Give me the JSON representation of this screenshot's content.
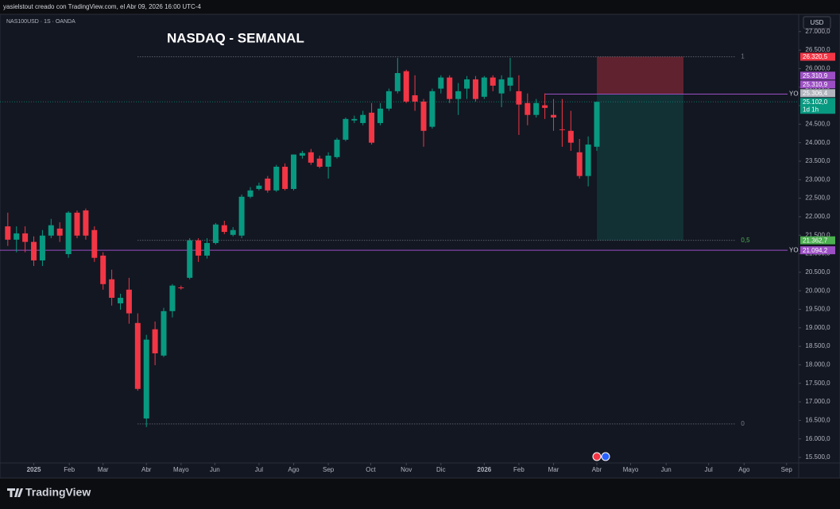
{
  "header": {
    "caption": "yasielstout creado con TradingView.com, el Abr 09, 2026 16:00 UTC-4",
    "symbol": "NAS100USD · 1S · OANDA",
    "currency": "USD"
  },
  "footer": {
    "brand": "TradingView"
  },
  "chart_data": {
    "type": "candlestick",
    "title": "NASDAQ - SEMANAL",
    "x": [
      0,
      1,
      2,
      3,
      4,
      5,
      6,
      7,
      8,
      9,
      10,
      11,
      12,
      13,
      14,
      15,
      16,
      17,
      18,
      19,
      20,
      21,
      22,
      23,
      24,
      25,
      26,
      27,
      28,
      29,
      30,
      31,
      32,
      33,
      34,
      35,
      36,
      37,
      38,
      39,
      40,
      41,
      42,
      43,
      44,
      45,
      46,
      47,
      48,
      49,
      50,
      51,
      52,
      53,
      54,
      55,
      56,
      57,
      58,
      59,
      60,
      61,
      62,
      63,
      64,
      65,
      66,
      67,
      68
    ],
    "open": [
      21740,
      21380,
      21550,
      21320,
      20820,
      21490,
      21680,
      20990,
      22110,
      22170,
      21640,
      20950,
      20310,
      19660,
      20030,
      19130,
      16550,
      18960,
      18250,
      19450,
      20090,
      20350,
      21360,
      20950,
      21290,
      21770,
      21510,
      21490,
      22540,
      22750,
      23030,
      22710,
      23350,
      22750,
      23650,
      23740,
      23570,
      23350,
      23610,
      24080,
      24600,
      24530,
      24810,
      24530,
      24920,
      25390,
      25930,
      25280,
      25110,
      24430,
      25460,
      25760,
      25180,
      25460,
      25710,
      25240,
      25760,
      25330,
      25540,
      25390,
      25070,
      24750,
      25010,
      24750,
      24360,
      24320,
      23740,
      23100,
      23890
    ],
    "high": [
      22110,
      21740,
      21740,
      21470,
      21640,
      21940,
      21850,
      22150,
      22170,
      22220,
      21740,
      21040,
      20570,
      19920,
      20350,
      19390,
      18810,
      19170,
      19540,
      20180,
      20140,
      21420,
      21420,
      21420,
      21830,
      21890,
      21720,
      22600,
      22800,
      22920,
      23100,
      23400,
      23440,
      23680,
      23780,
      23830,
      23650,
      23740,
      24130,
      24680,
      24730,
      24860,
      25070,
      25070,
      25460,
      26290,
      25970,
      25820,
      25180,
      25460,
      25820,
      25820,
      25610,
      25800,
      25800,
      25800,
      25820,
      25820,
      26290,
      25820,
      25330,
      25180,
      25330,
      25180,
      25180,
      24860,
      24100,
      24170,
      25110
    ],
    "low": [
      21210,
      21040,
      21040,
      20670,
      20670,
      21420,
      21320,
      20890,
      21420,
      21380,
      20780,
      20030,
      19600,
      19490,
      19110,
      17300,
      16320,
      17990,
      18210,
      19280,
      20030,
      20310,
      20780,
      20870,
      21250,
      21530,
      21470,
      21420,
      22500,
      22710,
      22650,
      22670,
      22710,
      22710,
      23570,
      23400,
      23310,
      23030,
      23570,
      24040,
      24530,
      24470,
      23950,
      24470,
      24860,
      25330,
      25070,
      24860,
      23890,
      24380,
      25330,
      25070,
      24750,
      25180,
      25110,
      25180,
      25390,
      24960,
      25390,
      24210,
      24470,
      24680,
      24640,
      24320,
      23890,
      23780,
      23030,
      22820,
      23780
    ],
    "close": [
      21380,
      21550,
      21320,
      20820,
      21490,
      21770,
      21490,
      22110,
      21490,
      21490,
      20890,
      20180,
      19810,
      19810,
      19390,
      17350,
      18680,
      18310,
      19450,
      20140,
      20070,
      21360,
      20950,
      21290,
      21790,
      21590,
      21640,
      22540,
      22710,
      22840,
      22710,
      23350,
      22750,
      23680,
      23720,
      23460,
      23350,
      23650,
      24080,
      24640,
      24640,
      24750,
      24000,
      24920,
      25390,
      25880,
      25110,
      25110,
      24320,
      25390,
      25760,
      25180,
      25390,
      25710,
      25180,
      25760,
      25540,
      25710,
      25760,
      25030,
      24750,
      25070,
      24940,
      24680,
      24340,
      24000,
      23100,
      23950,
      25102
    ],
    "up_color": "#089981",
    "down_color": "#f23645",
    "grid": false,
    "xlim": [
      -0.9,
      91.3
    ],
    "xticks": [
      {
        "value": 3.0,
        "label": "2025"
      },
      {
        "value": 7.1,
        "label": "Feb"
      },
      {
        "value": 11.0,
        "label": "Mar"
      },
      {
        "value": 16.0,
        "label": "Abr"
      },
      {
        "value": 20.0,
        "label": "Mayo"
      },
      {
        "value": 23.9,
        "label": "Jun"
      },
      {
        "value": 29.0,
        "label": "Jul"
      },
      {
        "value": 33.0,
        "label": "Ago"
      },
      {
        "value": 37.0,
        "label": "Sep"
      },
      {
        "value": 41.9,
        "label": "Oct"
      },
      {
        "value": 46.0,
        "label": "Nov"
      },
      {
        "value": 50.0,
        "label": "Dic"
      },
      {
        "value": 55.0,
        "label": "2026"
      },
      {
        "value": 59.0,
        "label": "Feb"
      },
      {
        "value": 63.0,
        "label": "Mar"
      },
      {
        "value": 68.0,
        "label": "Abr"
      },
      {
        "value": 71.9,
        "label": "Mayo"
      },
      {
        "value": 76.0,
        "label": "Jun"
      },
      {
        "value": 80.9,
        "label": "Jul"
      },
      {
        "value": 85.0,
        "label": "Ago"
      },
      {
        "value": 89.9,
        "label": "Sep"
      }
    ],
    "ylim": [
      15350,
      27210
    ],
    "yticks": [
      {
        "value": 15500,
        "label": "15.500,0"
      },
      {
        "value": 16000,
        "label": "16.000,0"
      },
      {
        "value": 16500,
        "label": "16.500,0"
      },
      {
        "value": 17000,
        "label": "17.000,0"
      },
      {
        "value": 17500,
        "label": "17.500,0"
      },
      {
        "value": 18000,
        "label": "18.000,0"
      },
      {
        "value": 18500,
        "label": "18.500,0"
      },
      {
        "value": 19000,
        "label": "19.000,0"
      },
      {
        "value": 19500,
        "label": "19.500,0"
      },
      {
        "value": 20000,
        "label": "20.000,0"
      },
      {
        "value": 20500,
        "label": "20.500,0"
      },
      {
        "value": 21000,
        "label": "21.000,0"
      },
      {
        "value": 21500,
        "label": "21.500,0"
      },
      {
        "value": 22000,
        "label": "22.000,0"
      },
      {
        "value": 22500,
        "label": "22.500,0"
      },
      {
        "value": 23000,
        "label": "23.000,0"
      },
      {
        "value": 23500,
        "label": "23.500,0"
      },
      {
        "value": 24000,
        "label": "24.000,0"
      },
      {
        "value": 24500,
        "label": "24.500,0"
      },
      {
        "value": 25000,
        "label": "25.000,0"
      },
      {
        "value": 25500,
        "label": "25.500,0"
      },
      {
        "value": 26000,
        "label": "26.000,0"
      },
      {
        "value": 26500,
        "label": "26.500,0"
      },
      {
        "value": 27000,
        "label": "27.000,0"
      }
    ],
    "fib_levels": [
      {
        "value": 26320.5,
        "label": "1",
        "color": "#787b86"
      },
      {
        "value": 21362.7,
        "label": "0,5",
        "color": "#4caf50"
      },
      {
        "value": 16404.9,
        "label": "0",
        "color": "#787b86"
      }
    ],
    "horizontal_lines": [
      {
        "value": 25310.9,
        "label": "YO",
        "color": "#9c4fc4"
      },
      {
        "value": 21094.2,
        "label": "YO",
        "color": "#9c4fc4"
      }
    ],
    "position": {
      "entry": 25306.4,
      "stop": 26320.5,
      "target": 21362.7
    },
    "price_labels": [
      {
        "value": 26320.5,
        "label": "26.320,5",
        "color": "#f23645"
      },
      {
        "value": 25310.9,
        "label": "25.310,9",
        "color": "#9c4fc4"
      },
      {
        "value": 25310.9,
        "label": "25.310,9",
        "color": "#9c4fc4"
      },
      {
        "value": 25306.4,
        "label": "25.306,4",
        "color": "#b2b5be"
      },
      {
        "value": 25102,
        "label": "25.102,0",
        "color": "#089981"
      },
      {
        "value": 21362.7,
        "label": "21.362,7",
        "color": "#4caf50"
      },
      {
        "value": 21094.2,
        "label": "21.094,2",
        "color": "#9c4fc4"
      }
    ],
    "countdown": "1d 1h"
  }
}
